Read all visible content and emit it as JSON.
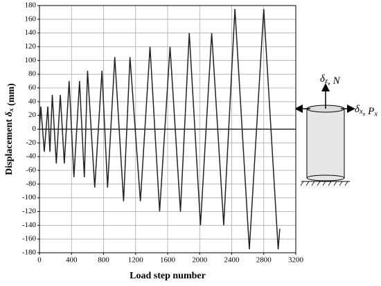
{
  "chart_data": {
    "type": "line",
    "x_label": "Load step number",
    "y_label": [
      {
        "text": "Displacement "
      },
      {
        "italic": "δ"
      },
      {
        "sub": "x"
      },
      {
        "text": " (mm)"
      }
    ],
    "x": [
      0,
      17,
      60,
      104,
      130,
      160,
      210,
      260,
      310,
      370,
      430,
      500,
      560,
      600,
      690,
      780,
      850,
      940,
      1050,
      1130,
      1260,
      1380,
      1500,
      1630,
      1760,
      1870,
      2010,
      2150,
      2300,
      2440,
      2620,
      2800,
      2980,
      3000
    ],
    "series": [
      {
        "color": "#222222",
        "values": [
          0,
          33,
          -33,
          33,
          -33,
          50,
          -50,
          50,
          -50,
          70,
          -70,
          70,
          -70,
          85,
          -85,
          85,
          -85,
          105,
          -105,
          105,
          -105,
          120,
          -120,
          120,
          -120,
          140,
          -140,
          140,
          -140,
          175,
          -175,
          175,
          -175,
          -145
        ]
      }
    ],
    "xlim": [
      0,
      3200
    ],
    "xticks": [
      0,
      400,
      800,
      1200,
      1600,
      2000,
      2400,
      2800,
      3200
    ],
    "ylim": [
      -180,
      180
    ],
    "yticks": [
      -180,
      -160,
      -140,
      -120,
      -100,
      -80,
      -60,
      -40,
      -20,
      0,
      20,
      40,
      60,
      80,
      100,
      120,
      140,
      160,
      180
    ],
    "grid": true,
    "annotations": [
      [
        {
          "italic": "δ"
        },
        {
          "sub": "z"
        },
        {
          "text": ", "
        },
        {
          "italic": "N"
        }
      ],
      [
        {
          "italic": "δ"
        },
        {
          "sub": "x"
        },
        {
          "text": ", "
        },
        {
          "italic": "P"
        },
        {
          "sub": "x"
        }
      ]
    ]
  }
}
